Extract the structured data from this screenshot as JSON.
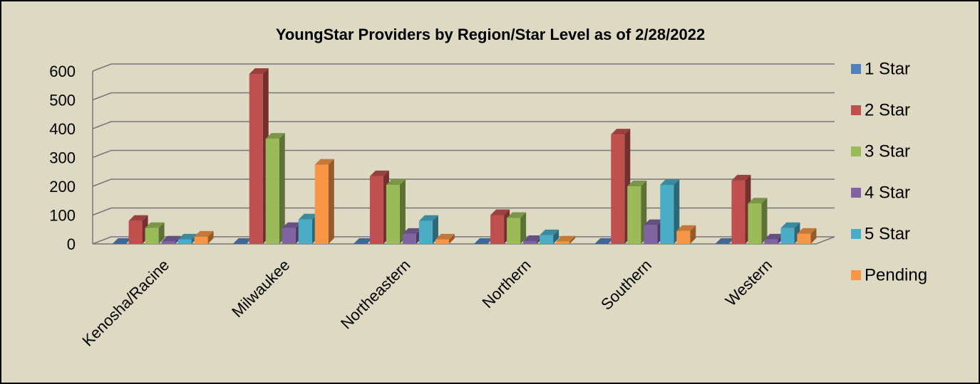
{
  "chart_data": {
    "type": "bar3d",
    "title": "YoungStar Providers by Region/Star Level as of 2/28/2022",
    "categories": [
      "Kenosha/Racine",
      "Milwaukee",
      "Northeastern",
      "Northern",
      "Southern",
      "Western"
    ],
    "series": [
      {
        "name": "1 Star",
        "color": "#4f81bd",
        "values": [
          0,
          0,
          0,
          0,
          0,
          0
        ]
      },
      {
        "name": "2 Star",
        "color": "#c0504d",
        "values": [
          80,
          590,
          235,
          100,
          380,
          220
        ]
      },
      {
        "name": "3 Star",
        "color": "#9bbb59",
        "values": [
          55,
          365,
          205,
          90,
          200,
          140
        ]
      },
      {
        "name": "4 Star",
        "color": "#8064a2",
        "values": [
          8,
          55,
          35,
          10,
          65,
          15
        ]
      },
      {
        "name": "5 Star",
        "color": "#4bacc6",
        "values": [
          15,
          85,
          80,
          30,
          205,
          55
        ]
      },
      {
        "name": "Pending",
        "color": "#f79646",
        "values": [
          25,
          275,
          15,
          8,
          45,
          35
        ]
      }
    ],
    "ylim": [
      0,
      600
    ],
    "yticks": [
      0,
      100,
      200,
      300,
      400,
      500,
      600
    ],
    "grid": true,
    "legend": "right"
  }
}
